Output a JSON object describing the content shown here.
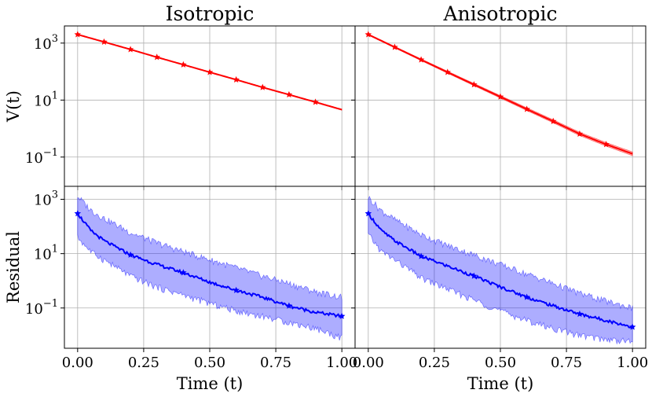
{
  "chart_data": [
    {
      "type": "line",
      "title": "Isotropic",
      "xlabel": "",
      "ylabel": "V(t)",
      "yscale": "log",
      "xlim": [
        -0.05,
        1.05
      ],
      "ylim": [
        0.0094,
        4000
      ],
      "grid": true,
      "xticks": [
        0.0,
        0.25,
        0.5,
        0.75,
        1.0
      ],
      "yticks": [
        {
          "base": "10",
          "exp": "3",
          "value": 1000
        },
        {
          "base": "10",
          "exp": "1",
          "value": 10
        },
        {
          "base": "10",
          "exp": "−1",
          "value": 0.1
        }
      ],
      "color": "#ff0000",
      "series": [
        {
          "x": [
            0.0,
            0.1,
            0.2,
            0.3,
            0.4,
            0.5,
            0.6,
            0.7,
            0.8,
            0.9,
            1.0
          ],
          "values": [
            2000,
            1100,
            600,
            320,
            175,
            95,
            52,
            28,
            15.5,
            8.5,
            4.6
          ],
          "band_rel": 0.03
        }
      ]
    },
    {
      "type": "line",
      "title": "Anisotropic",
      "xlabel": "",
      "ylabel": "",
      "yscale": "log",
      "xlim": [
        -0.05,
        1.05
      ],
      "ylim": [
        0.0094,
        4000
      ],
      "grid": true,
      "xticks": [
        0.0,
        0.25,
        0.5,
        0.75,
        1.0
      ],
      "color": "#ff0000",
      "series": [
        {
          "x": [
            0.0,
            0.1,
            0.2,
            0.3,
            0.4,
            0.5,
            0.6,
            0.7,
            0.8,
            0.9,
            1.0
          ],
          "values": [
            2000,
            720,
            260,
            95,
            35,
            13,
            4.8,
            1.8,
            0.65,
            0.28,
            0.13
          ],
          "band_rel": 0.12
        }
      ]
    },
    {
      "type": "line",
      "title": "",
      "xlabel": "Time (t)",
      "ylabel": "Residual",
      "yscale": "log",
      "xlim": [
        -0.05,
        1.05
      ],
      "ylim": [
        0.0033,
        3000
      ],
      "grid": true,
      "xticks": [
        0.0,
        0.25,
        0.5,
        0.75,
        1.0
      ],
      "xticklabels": [
        "0.00",
        "0.25",
        "0.50",
        "0.75",
        "1.00"
      ],
      "yticks": [
        {
          "base": "10",
          "exp": "3",
          "value": 1000
        },
        {
          "base": "10",
          "exp": "1",
          "value": 10
        },
        {
          "base": "10",
          "exp": "−1",
          "value": 0.1
        }
      ],
      "color": "#0000ff",
      "series": [
        {
          "x": [
            0.0,
            0.05,
            0.1,
            0.2,
            0.3,
            0.4,
            0.5,
            0.6,
            0.7,
            0.8,
            0.9,
            1.0
          ],
          "values": [
            300,
            70,
            30,
            9,
            4,
            2,
            0.9,
            0.45,
            0.25,
            0.12,
            0.07,
            0.05
          ],
          "band_upper": [
            1300,
            400,
            200,
            60,
            25,
            12,
            6,
            3.0,
            1.5,
            0.8,
            0.4,
            0.25
          ],
          "band_lower": [
            40,
            12,
            6,
            1.5,
            0.6,
            0.3,
            0.15,
            0.08,
            0.05,
            0.03,
            0.018,
            0.008
          ]
        }
      ]
    },
    {
      "type": "line",
      "title": "",
      "xlabel": "Time (t)",
      "ylabel": "",
      "yscale": "log",
      "xlim": [
        -0.05,
        1.05
      ],
      "ylim": [
        0.0033,
        3000
      ],
      "grid": true,
      "xticks": [
        0.0,
        0.25,
        0.5,
        0.75,
        1.0
      ],
      "xticklabels": [
        "0.00",
        "0.25",
        "0.50",
        "0.75",
        "1.00"
      ],
      "color": "#0000ff",
      "series": [
        {
          "x": [
            0.0,
            0.05,
            0.1,
            0.2,
            0.3,
            0.4,
            0.5,
            0.6,
            0.7,
            0.8,
            0.9,
            1.0
          ],
          "values": [
            300,
            70,
            30,
            8,
            3.5,
            1.5,
            0.6,
            0.25,
            0.12,
            0.06,
            0.035,
            0.02
          ],
          "band_upper": [
            1200,
            380,
            180,
            50,
            20,
            9,
            4,
            1.8,
            0.8,
            0.35,
            0.18,
            0.1
          ],
          "band_lower": [
            50,
            12,
            6,
            1.3,
            0.5,
            0.2,
            0.08,
            0.035,
            0.018,
            0.01,
            0.007,
            0.006
          ]
        }
      ]
    }
  ]
}
